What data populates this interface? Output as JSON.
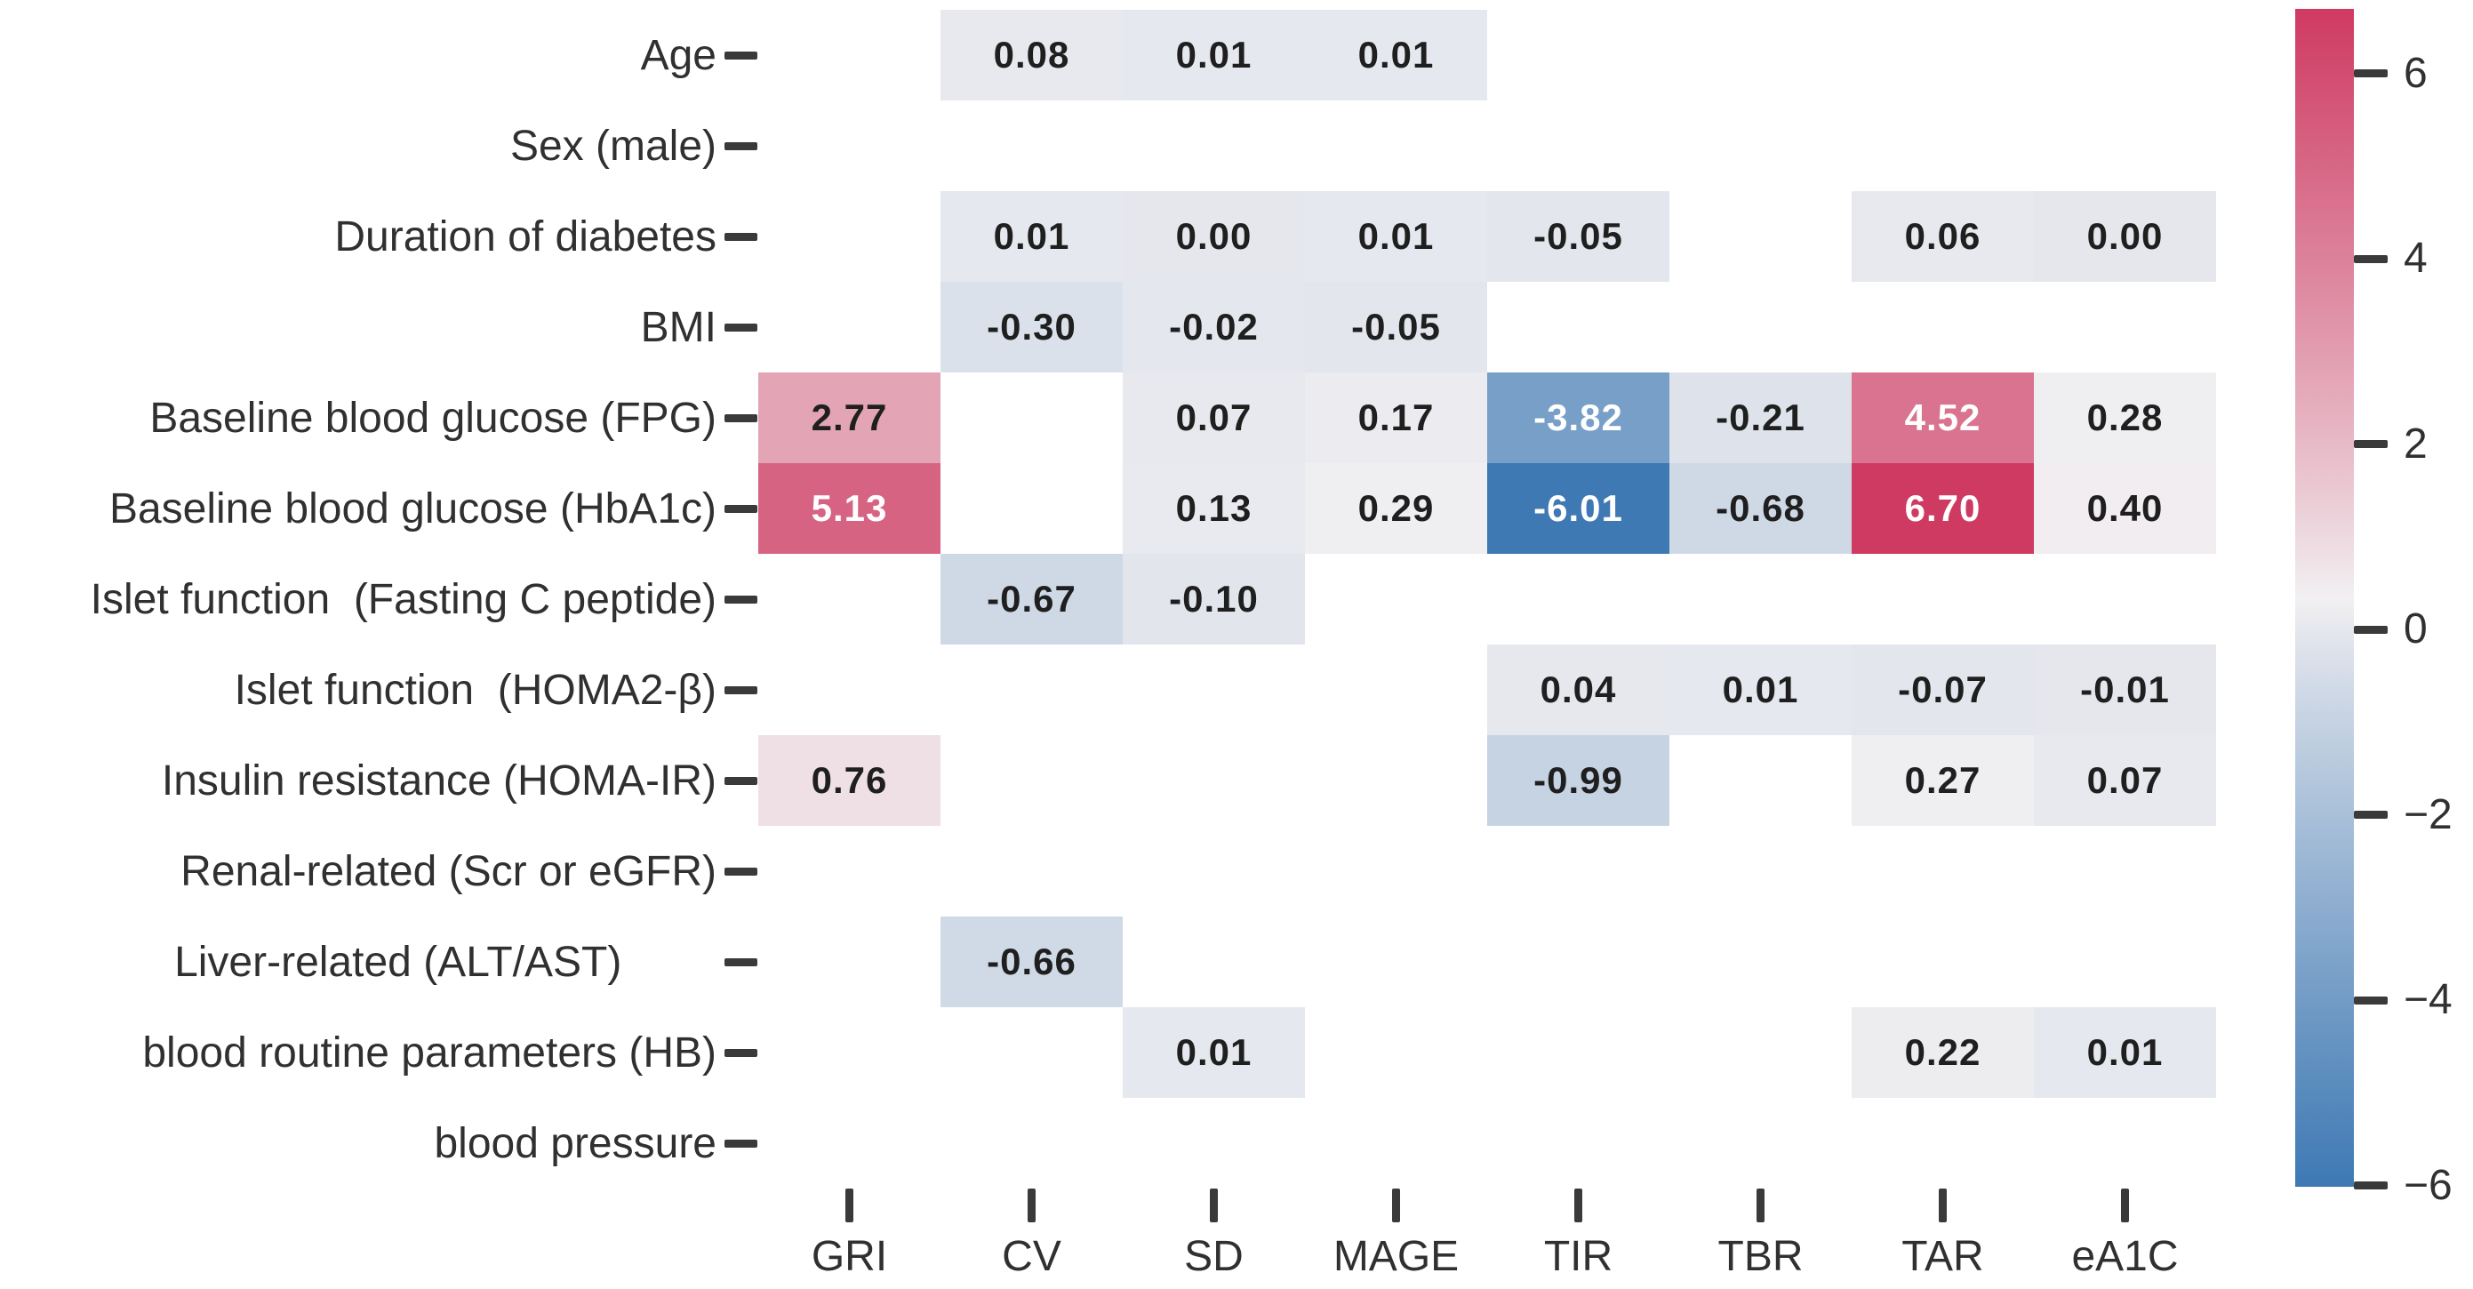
{
  "figure": {
    "background": "#ffffff",
    "text_color": "#303030"
  },
  "chart_data": {
    "type": "heatmap",
    "title": "",
    "xlabel": "",
    "ylabel": "",
    "grid": "off",
    "legend_position": "right-colorbar",
    "columns": [
      "GRI",
      "CV",
      "SD",
      "MAGE",
      "TIR",
      "TBR",
      "TAR",
      "eA1C"
    ],
    "rows": [
      "Age",
      "Sex (male)",
      "Duration of diabetes",
      "BMI",
      "Baseline blood glucose (FPG)",
      "Baseline blood glucose (HbA1c)",
      "Islet function  (Fasting C peptide)",
      "Islet function  (HOMA2-β)",
      "Insulin resistance (HOMA-IR)",
      "Renal-related (Scr or eGFR)",
      "Liver-related (ALT/AST)        ",
      "blood routine parameters (HB)",
      "blood pressure"
    ],
    "matrix": [
      [
        null,
        0.08,
        0.01,
        0.01,
        null,
        null,
        null,
        null
      ],
      [
        null,
        null,
        null,
        null,
        null,
        null,
        null,
        null
      ],
      [
        null,
        0.01,
        0.0,
        0.01,
        -0.05,
        null,
        0.06,
        0.0
      ],
      [
        null,
        -0.3,
        -0.02,
        -0.05,
        null,
        null,
        null,
        null
      ],
      [
        2.77,
        null,
        0.07,
        0.17,
        -3.82,
        -0.21,
        4.52,
        0.28
      ],
      [
        5.13,
        null,
        0.13,
        0.29,
        -6.01,
        -0.68,
        6.7,
        0.4
      ],
      [
        null,
        -0.67,
        -0.1,
        null,
        null,
        null,
        null,
        null
      ],
      [
        null,
        null,
        null,
        null,
        0.04,
        0.01,
        -0.07,
        -0.01
      ],
      [
        0.76,
        null,
        null,
        null,
        -0.99,
        null,
        0.27,
        0.07
      ],
      [
        null,
        null,
        null,
        null,
        null,
        null,
        null,
        null
      ],
      [
        null,
        -0.66,
        null,
        null,
        null,
        null,
        null,
        null
      ],
      [
        null,
        null,
        0.01,
        null,
        null,
        null,
        0.22,
        0.01
      ],
      [
        null,
        null,
        null,
        null,
        null,
        null,
        null,
        null
      ]
    ],
    "colorbar": {
      "ticks": [
        6,
        4,
        2,
        0,
        -2,
        -4,
        -6
      ],
      "vmin": -6.01,
      "vmax": 6.7,
      "color_positive_end": "#cf3a62",
      "color_negative_end": "#3e79b4",
      "color_mid": "#f2f0f2"
    }
  }
}
